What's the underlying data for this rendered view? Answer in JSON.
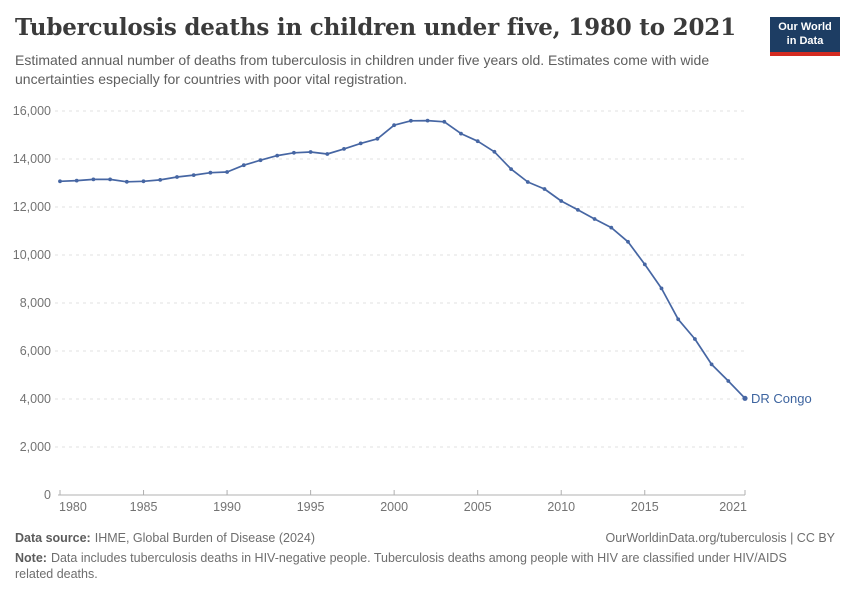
{
  "header": {
    "title": "Tuberculosis deaths in children under five, 1980 to 2021",
    "subtitle": "Estimated annual number of deaths from tuberculosis in children under five years old. Estimates come with wide uncertainties especially for countries with poor vital registration.",
    "logo_line1": "Our World",
    "logo_line2": "in Data"
  },
  "chart_data": {
    "type": "line",
    "title": "Tuberculosis deaths in children under five, 1980 to 2021",
    "xlabel": "",
    "ylabel": "",
    "x": [
      1980,
      1981,
      1982,
      1983,
      1984,
      1985,
      1986,
      1987,
      1988,
      1989,
      1990,
      1991,
      1992,
      1993,
      1994,
      1995,
      1996,
      1997,
      1998,
      1999,
      2000,
      2001,
      2002,
      2003,
      2004,
      2005,
      2006,
      2007,
      2008,
      2009,
      2010,
      2011,
      2012,
      2013,
      2014,
      2015,
      2016,
      2017,
      2018,
      2019,
      2020,
      2021
    ],
    "series": [
      {
        "name": "DR Congo",
        "values": [
          13070,
          13100,
          13150,
          13150,
          13050,
          13070,
          13130,
          13250,
          13330,
          13430,
          13460,
          13740,
          13950,
          14140,
          14260,
          14290,
          14210,
          14420,
          14650,
          14840,
          15410,
          15590,
          15600,
          15550,
          15060,
          14740,
          14300,
          13580,
          13040,
          12750,
          12250,
          11880,
          11500,
          11140,
          10550,
          9610,
          8610,
          7320,
          6500,
          5440,
          4750,
          4030
        ]
      }
    ],
    "end_label": "DR Congo",
    "xlim": [
      1980,
      2021
    ],
    "ylim": [
      0,
      16000
    ],
    "yticks": [
      0,
      2000,
      4000,
      6000,
      8000,
      10000,
      12000,
      14000,
      16000
    ],
    "ytick_labels": [
      "0",
      "2,000",
      "4,000",
      "6,000",
      "8,000",
      "10,000",
      "12,000",
      "14,000",
      "16,000"
    ],
    "xticks": [
      1980,
      1985,
      1990,
      1995,
      2000,
      2005,
      2010,
      2015,
      2021
    ],
    "xtick_labels": [
      "1980",
      "1985",
      "1990",
      "1995",
      "2000",
      "2005",
      "2010",
      "2015",
      "2021"
    ],
    "grid": "horizontal-dashed",
    "legend": "line-end-label"
  },
  "footer": {
    "source_label": "Data source:",
    "source_text": "IHME, Global Burden of Disease (2024)",
    "link_text": "OurWorldinData.org/tuberculosis | CC BY",
    "note_label": "Note:",
    "note_text": "Data includes tuberculosis deaths in HIV-negative people. Tuberculosis deaths among people with HIV are classified under HIV/AIDS related deaths."
  },
  "colors": {
    "line": "#4666a3",
    "end_label": "#3d649f",
    "grid": "#e0e0e0",
    "axis": "#b0b0b0",
    "tick_text": "#737373",
    "logo_bg": "#1d3d63",
    "logo_accent": "#d42b21"
  }
}
